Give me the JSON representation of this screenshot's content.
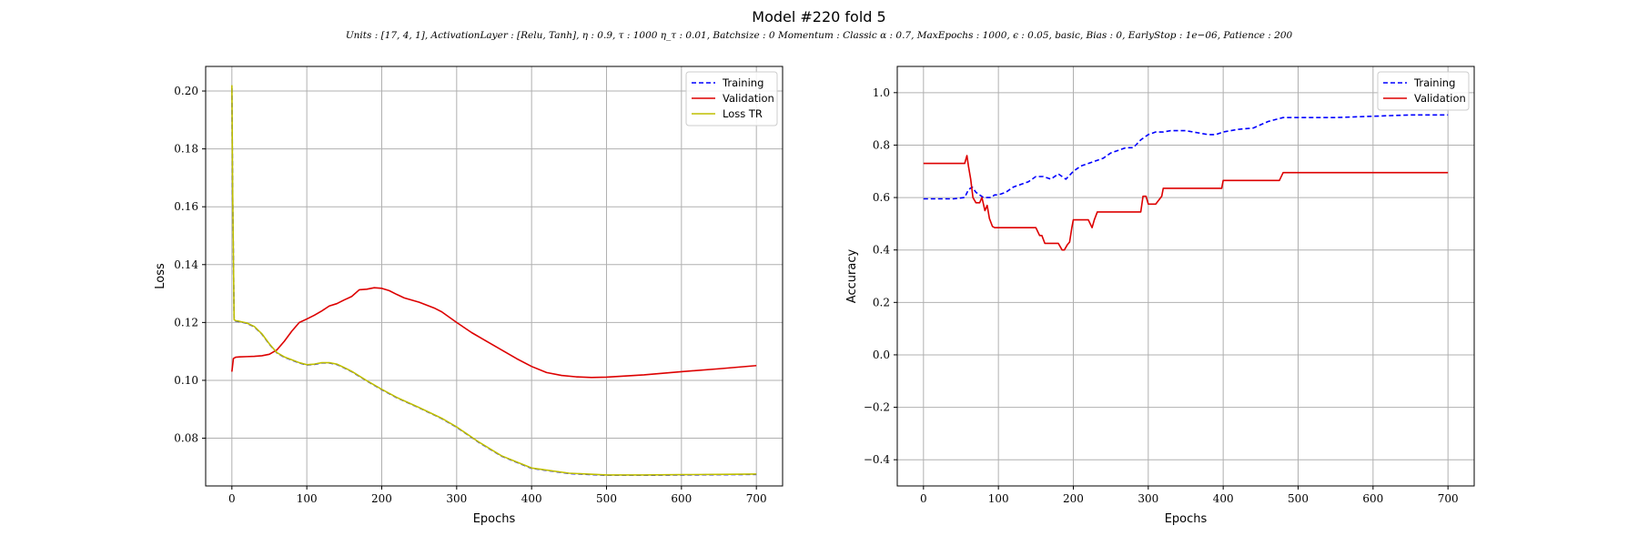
{
  "figure": {
    "title": "Model #220 fold 5",
    "subtitle": "Units : [17, 4, 1], ActivationLayer : [Relu, Tanh], η : 0.9, τ : 1000 η_τ : 0.01, Batchsize : 0 Momentum : Classic α : 0.7, MaxEpochs : 1000, ϵ : 0.05, basic, Bias : 0, EarlyStop : 1e−06, Patience : 200"
  },
  "chart_data": [
    {
      "type": "line",
      "xlabel": "Epochs",
      "ylabel": "Loss",
      "xlim": [
        -35,
        735
      ],
      "ylim": [
        0.0635,
        0.2085
      ],
      "xticks": [
        0,
        100,
        200,
        300,
        400,
        500,
        600,
        700
      ],
      "yticks": [
        0.08,
        0.1,
        0.12,
        0.14,
        0.16,
        0.18,
        0.2
      ],
      "ytick_labels": [
        "0.08",
        "0.10",
        "0.12",
        "0.14",
        "0.16",
        "0.18",
        "0.20"
      ],
      "grid": true,
      "legend": "top-right",
      "series": [
        {
          "name": "Training",
          "color": "#0000ff",
          "style": "dashed",
          "x": [
            0,
            1,
            3,
            5,
            10,
            20,
            30,
            40,
            50,
            60,
            70,
            80,
            90,
            100,
            110,
            120,
            130,
            140,
            150,
            160,
            180,
            200,
            220,
            250,
            280,
            300,
            330,
            360,
            400,
            450,
            500,
            550,
            600,
            650,
            700
          ],
          "y": [
            0.201,
            0.165,
            0.121,
            0.1205,
            0.1203,
            0.1197,
            0.1185,
            0.116,
            0.1125,
            0.1095,
            0.108,
            0.107,
            0.106,
            0.1053,
            0.1055,
            0.106,
            0.106,
            0.1055,
            0.1043,
            0.103,
            0.0998,
            0.0968,
            0.094,
            0.0905,
            0.0868,
            0.0838,
            0.0785,
            0.0738,
            0.0696,
            0.0678,
            0.0672,
            0.0672,
            0.0673,
            0.0674,
            0.0675
          ]
        },
        {
          "name": "Validation",
          "color": "#dd0000",
          "style": "solid",
          "x": [
            0,
            2,
            5,
            10,
            20,
            30,
            40,
            50,
            60,
            70,
            80,
            90,
            100,
            110,
            120,
            130,
            140,
            150,
            160,
            170,
            180,
            190,
            200,
            210,
            220,
            230,
            250,
            270,
            280,
            300,
            320,
            340,
            360,
            380,
            400,
            420,
            440,
            460,
            480,
            500,
            550,
            600,
            650,
            700
          ],
          "y": [
            0.103,
            0.1075,
            0.108,
            0.1081,
            0.1082,
            0.1083,
            0.1085,
            0.109,
            0.1105,
            0.1135,
            0.117,
            0.12,
            0.1212,
            0.1225,
            0.124,
            0.1257,
            0.1265,
            0.1278,
            0.129,
            0.1313,
            0.1315,
            0.132,
            0.1318,
            0.131,
            0.1297,
            0.1285,
            0.127,
            0.125,
            0.1237,
            0.12,
            0.1165,
            0.1135,
            0.1105,
            0.1075,
            0.1048,
            0.1027,
            0.1017,
            0.1012,
            0.101,
            0.1011,
            0.1019,
            0.103,
            0.104,
            0.1051
          ]
        },
        {
          "name": "Loss TR",
          "color": "#bfbf00",
          "style": "solid",
          "x": [
            0,
            1,
            3,
            5,
            10,
            20,
            30,
            40,
            50,
            60,
            70,
            80,
            90,
            100,
            110,
            120,
            130,
            140,
            150,
            160,
            180,
            200,
            220,
            250,
            280,
            300,
            330,
            360,
            400,
            450,
            500,
            550,
            600,
            650,
            700
          ],
          "y": [
            0.202,
            0.166,
            0.121,
            0.1206,
            0.1204,
            0.1198,
            0.1186,
            0.1161,
            0.1126,
            0.1096,
            0.1081,
            0.1071,
            0.1061,
            0.1054,
            0.1056,
            0.1061,
            0.1061,
            0.1056,
            0.1044,
            0.1031,
            0.0999,
            0.0969,
            0.0941,
            0.0906,
            0.0869,
            0.0839,
            0.0786,
            0.0739,
            0.0697,
            0.0679,
            0.0673,
            0.0673,
            0.0674,
            0.0675,
            0.0676
          ]
        }
      ]
    },
    {
      "type": "line",
      "xlabel": "Epochs",
      "ylabel": "Accuracy",
      "xlim": [
        -35,
        735
      ],
      "ylim": [
        -0.5,
        1.1
      ],
      "xticks": [
        0,
        100,
        200,
        300,
        400,
        500,
        600,
        700
      ],
      "yticks": [
        -0.4,
        -0.2,
        0.0,
        0.2,
        0.4,
        0.6,
        0.8,
        1.0
      ],
      "ytick_labels": [
        "−0.4",
        "−0.2",
        "0.0",
        "0.2",
        "0.4",
        "0.6",
        "0.8",
        "1.0"
      ],
      "grid": true,
      "legend": "top-right",
      "series": [
        {
          "name": "Training",
          "color": "#0000ff",
          "style": "dashed",
          "x": [
            0,
            40,
            55,
            60,
            65,
            70,
            75,
            80,
            85,
            90,
            95,
            100,
            110,
            120,
            130,
            140,
            150,
            160,
            170,
            180,
            190,
            200,
            210,
            220,
            230,
            240,
            250,
            260,
            270,
            280,
            290,
            300,
            310,
            320,
            330,
            340,
            350,
            360,
            370,
            380,
            390,
            400,
            420,
            440,
            460,
            480,
            500,
            550,
            600,
            650,
            700
          ],
          "y": [
            0.595,
            0.595,
            0.6,
            0.63,
            0.64,
            0.62,
            0.61,
            0.6,
            0.6,
            0.6,
            0.61,
            0.61,
            0.62,
            0.64,
            0.65,
            0.66,
            0.68,
            0.68,
            0.67,
            0.69,
            0.67,
            0.7,
            0.72,
            0.73,
            0.74,
            0.75,
            0.77,
            0.78,
            0.79,
            0.79,
            0.82,
            0.84,
            0.85,
            0.85,
            0.855,
            0.855,
            0.855,
            0.85,
            0.845,
            0.84,
            0.84,
            0.85,
            0.86,
            0.865,
            0.89,
            0.905,
            0.905,
            0.905,
            0.91,
            0.915,
            0.915
          ]
        },
        {
          "name": "Validation",
          "color": "#dd0000",
          "style": "solid",
          "x": [
            0,
            55,
            58,
            60,
            63,
            66,
            70,
            75,
            78,
            82,
            85,
            88,
            92,
            95,
            100,
            110,
            120,
            130,
            140,
            150,
            155,
            158,
            162,
            170,
            180,
            185,
            188,
            192,
            195,
            198,
            200,
            210,
            220,
            225,
            228,
            232,
            240,
            250,
            260,
            270,
            280,
            290,
            293,
            297,
            300,
            305,
            310,
            318,
            320,
            330,
            340,
            360,
            380,
            390,
            398,
            400,
            420,
            440,
            460,
            475,
            480,
            500,
            550,
            600,
            650,
            700
          ],
          "y": [
            0.73,
            0.73,
            0.76,
            0.72,
            0.67,
            0.6,
            0.58,
            0.58,
            0.6,
            0.55,
            0.57,
            0.52,
            0.49,
            0.485,
            0.485,
            0.485,
            0.485,
            0.485,
            0.485,
            0.485,
            0.455,
            0.455,
            0.425,
            0.425,
            0.425,
            0.4,
            0.4,
            0.42,
            0.43,
            0.485,
            0.515,
            0.515,
            0.515,
            0.485,
            0.515,
            0.545,
            0.545,
            0.545,
            0.545,
            0.545,
            0.545,
            0.545,
            0.605,
            0.605,
            0.575,
            0.575,
            0.575,
            0.605,
            0.635,
            0.635,
            0.635,
            0.635,
            0.635,
            0.635,
            0.635,
            0.665,
            0.665,
            0.665,
            0.665,
            0.665,
            0.695,
            0.695,
            0.695,
            0.695,
            0.695,
            0.695
          ]
        }
      ]
    }
  ]
}
